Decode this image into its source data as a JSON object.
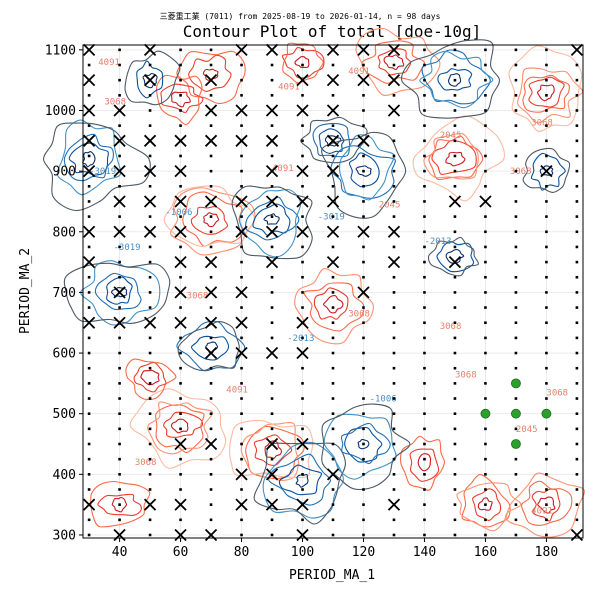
{
  "suptitle": "三菱重工業 (7011) from 2025-08-19 to 2026-01-14, n = 98 days",
  "chart_data": {
    "type": "contour",
    "title": "Contour Plot of total [doe-10g]",
    "xlabel": "PERIOD_MA_1",
    "ylabel": "PERIOD_MA_2",
    "xlim": [
      28,
      192
    ],
    "ylim": [
      295,
      1108
    ],
    "xticks": [
      40,
      60,
      80,
      100,
      120,
      140,
      160,
      180
    ],
    "yticks": [
      300,
      400,
      500,
      600,
      700,
      800,
      900,
      1000,
      1100
    ],
    "grid": true,
    "contour_levels_shown": [
      "4091",
      "3068",
      "2045",
      "-1006",
      "-2013",
      "-3019"
    ],
    "colors": {
      "positive": "#d7301f",
      "positive_light": "#fcbba1",
      "negative": "#08519c",
      "negative_light": "#9ecae1",
      "neutral": "#4d5a66",
      "highlight_point": "#2ca02c"
    },
    "highlight_points": [
      {
        "x": 170,
        "y": 550
      },
      {
        "x": 160,
        "y": 500
      },
      {
        "x": 170,
        "y": 500
      },
      {
        "x": 180,
        "y": 500
      },
      {
        "x": 170,
        "y": 450
      }
    ],
    "x_markers": [
      {
        "x": 30,
        "y": 1100
      },
      {
        "x": 50,
        "y": 1100
      },
      {
        "x": 80,
        "y": 1100
      },
      {
        "x": 90,
        "y": 1100
      },
      {
        "x": 110,
        "y": 1100
      },
      {
        "x": 120,
        "y": 1100
      },
      {
        "x": 130,
        "y": 1100
      },
      {
        "x": 190,
        "y": 1100
      },
      {
        "x": 30,
        "y": 1050
      },
      {
        "x": 50,
        "y": 1050
      },
      {
        "x": 70,
        "y": 1050
      },
      {
        "x": 100,
        "y": 1050
      },
      {
        "x": 110,
        "y": 1050
      },
      {
        "x": 120,
        "y": 1050
      },
      {
        "x": 130,
        "y": 1050
      },
      {
        "x": 30,
        "y": 1000
      },
      {
        "x": 40,
        "y": 1000
      },
      {
        "x": 70,
        "y": 1000
      },
      {
        "x": 80,
        "y": 1000
      },
      {
        "x": 90,
        "y": 1000
      },
      {
        "x": 100,
        "y": 1000
      },
      {
        "x": 110,
        "y": 1000
      },
      {
        "x": 130,
        "y": 1000
      },
      {
        "x": 30,
        "y": 950
      },
      {
        "x": 40,
        "y": 950
      },
      {
        "x": 50,
        "y": 950
      },
      {
        "x": 60,
        "y": 950
      },
      {
        "x": 70,
        "y": 950
      },
      {
        "x": 80,
        "y": 950
      },
      {
        "x": 90,
        "y": 950
      },
      {
        "x": 110,
        "y": 950
      },
      {
        "x": 120,
        "y": 950
      },
      {
        "x": 30,
        "y": 900
      },
      {
        "x": 40,
        "y": 900
      },
      {
        "x": 50,
        "y": 900
      },
      {
        "x": 60,
        "y": 900
      },
      {
        "x": 90,
        "y": 900
      },
      {
        "x": 100,
        "y": 900
      },
      {
        "x": 110,
        "y": 900
      },
      {
        "x": 180,
        "y": 900
      },
      {
        "x": 40,
        "y": 850
      },
      {
        "x": 50,
        "y": 850
      },
      {
        "x": 60,
        "y": 850
      },
      {
        "x": 70,
        "y": 850
      },
      {
        "x": 80,
        "y": 850
      },
      {
        "x": 90,
        "y": 850
      },
      {
        "x": 100,
        "y": 850
      },
      {
        "x": 110,
        "y": 850
      },
      {
        "x": 150,
        "y": 850
      },
      {
        "x": 160,
        "y": 850
      },
      {
        "x": 30,
        "y": 800
      },
      {
        "x": 40,
        "y": 800
      },
      {
        "x": 50,
        "y": 800
      },
      {
        "x": 60,
        "y": 800
      },
      {
        "x": 80,
        "y": 800
      },
      {
        "x": 90,
        "y": 800
      },
      {
        "x": 100,
        "y": 800
      },
      {
        "x": 110,
        "y": 800
      },
      {
        "x": 120,
        "y": 800
      },
      {
        "x": 130,
        "y": 800
      },
      {
        "x": 30,
        "y": 750
      },
      {
        "x": 60,
        "y": 750
      },
      {
        "x": 70,
        "y": 750
      },
      {
        "x": 90,
        "y": 750
      },
      {
        "x": 110,
        "y": 750
      },
      {
        "x": 130,
        "y": 750
      },
      {
        "x": 150,
        "y": 750
      },
      {
        "x": 40,
        "y": 700
      },
      {
        "x": 60,
        "y": 700
      },
      {
        "x": 70,
        "y": 700
      },
      {
        "x": 80,
        "y": 700
      },
      {
        "x": 120,
        "y": 700
      },
      {
        "x": 30,
        "y": 650
      },
      {
        "x": 40,
        "y": 650
      },
      {
        "x": 50,
        "y": 650
      },
      {
        "x": 60,
        "y": 650
      },
      {
        "x": 70,
        "y": 650
      },
      {
        "x": 80,
        "y": 650
      },
      {
        "x": 100,
        "y": 650
      },
      {
        "x": 70,
        "y": 600
      },
      {
        "x": 80,
        "y": 600
      },
      {
        "x": 90,
        "y": 600
      },
      {
        "x": 100,
        "y": 600
      },
      {
        "x": 60,
        "y": 450
      },
      {
        "x": 70,
        "y": 450
      },
      {
        "x": 90,
        "y": 450
      },
      {
        "x": 100,
        "y": 450
      },
      {
        "x": 80,
        "y": 400
      },
      {
        "x": 90,
        "y": 400
      },
      {
        "x": 110,
        "y": 400
      },
      {
        "x": 30,
        "y": 350
      },
      {
        "x": 50,
        "y": 350
      },
      {
        "x": 60,
        "y": 350
      },
      {
        "x": 80,
        "y": 350
      },
      {
        "x": 90,
        "y": 350
      },
      {
        "x": 100,
        "y": 350
      },
      {
        "x": 130,
        "y": 350
      },
      {
        "x": 40,
        "y": 300
      },
      {
        "x": 60,
        "y": 300
      },
      {
        "x": 70,
        "y": 300
      },
      {
        "x": 100,
        "y": 300
      },
      {
        "x": 190,
        "y": 300
      }
    ],
    "dot_grid": {
      "x_start": 30,
      "x_end": 190,
      "x_step": 10,
      "y_start": 300,
      "y_end": 1100,
      "y_step": 25
    }
  }
}
